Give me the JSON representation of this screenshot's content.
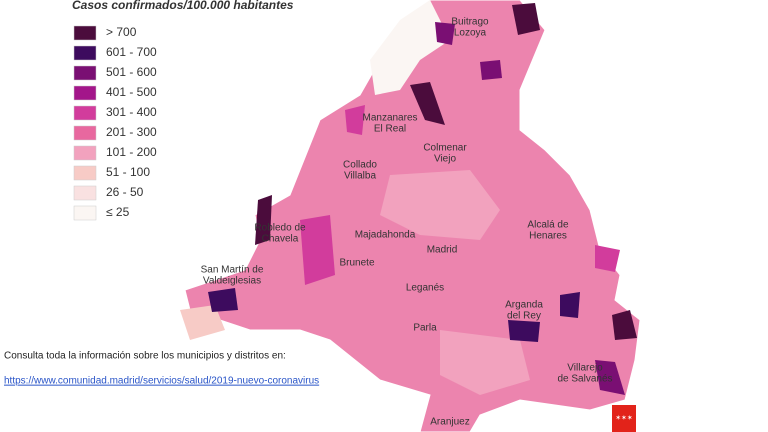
{
  "legend": {
    "title": "Casos confirmados/100.000 habitantes",
    "items": [
      {
        "label": "> 700",
        "color": "#4b0c3c"
      },
      {
        "label": "601 - 700",
        "color": "#3d0b5e"
      },
      {
        "label": "501 - 600",
        "color": "#7a0f73"
      },
      {
        "label": "401 - 500",
        "color": "#a3168a"
      },
      {
        "label": "301 - 400",
        "color": "#d23c9c"
      },
      {
        "label": "201 - 300",
        "color": "#e8689f"
      },
      {
        "label": "101 - 200",
        "color": "#f2a2be"
      },
      {
        "label": "51 - 100",
        "color": "#f7cbc6"
      },
      {
        "label": "26 - 50",
        "color": "#f9e1e1"
      },
      {
        "label": "≤ 25",
        "color": "#fbf6f3"
      }
    ]
  },
  "places": [
    [
      "Buitrago",
      "Lozoya"
    ],
    [
      "Manzanares",
      "El Real"
    ],
    [
      "Colmenar",
      "Viejo"
    ],
    [
      "Collado",
      "Villalba"
    ],
    [
      "Robledo de",
      "Chavela"
    ],
    [
      "Majadahonda"
    ],
    [
      "Madrid"
    ],
    [
      "Alcalá de",
      "Henares"
    ],
    [
      "San Martín de",
      "Valdeiglesias"
    ],
    [
      "Brunete"
    ],
    [
      "Leganés"
    ],
    [
      "Arganda",
      "del Rey"
    ],
    [
      "Parla"
    ],
    [
      "Villarejo",
      "de Salvanés"
    ],
    [
      "Aranjuez"
    ]
  ],
  "footer": {
    "text": "Consulta toda la información sobre los municipios y distritos en:",
    "link": "https://www.comunidad.madrid/servicios/salud/2019-nuevo-coronavirus"
  }
}
